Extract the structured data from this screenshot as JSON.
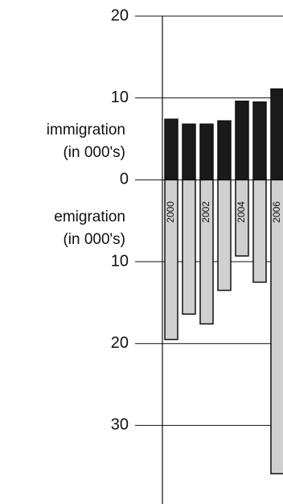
{
  "chart_data": {
    "type": "bar",
    "categories": [
      "2000",
      null,
      "2002",
      null,
      "2004",
      null,
      "2006"
    ],
    "series": [
      {
        "name": "immigration",
        "unit": "(in 000's)",
        "color": "#1a1a1a",
        "values": [
          7.4,
          6.8,
          6.8,
          7.2,
          9.6,
          9.5,
          11.1
        ]
      },
      {
        "name": "emigration",
        "unit": "(in 000's)",
        "color": "#d0d0d0",
        "values": [
          -19.5,
          -16.4,
          -17.6,
          -13.5,
          -9.3,
          -12.5,
          -35.9
        ]
      }
    ],
    "ylim": [
      -39.5,
      20
    ],
    "yticks": [
      20,
      10,
      0,
      {
        "value": -10,
        "label": "10"
      },
      {
        "value": -20,
        "label": "20"
      },
      {
        "value": -30,
        "label": "30"
      }
    ],
    "grid": true
  }
}
